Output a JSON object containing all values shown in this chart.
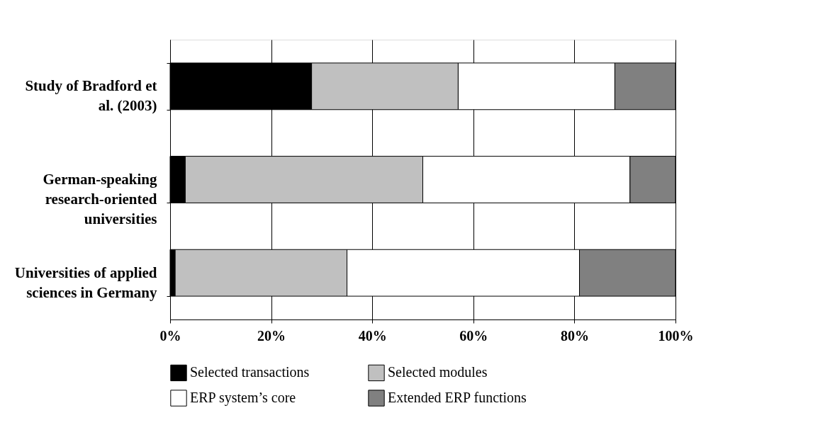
{
  "chart_data": {
    "type": "bar",
    "orientation": "horizontal",
    "stacked": true,
    "categories": [
      "Study of Bradford et al. (2003)",
      "German-speaking research-oriented universities",
      "Universities of applied sciences in Germany"
    ],
    "series": [
      {
        "name": "Selected transactions",
        "color": "#000000",
        "values": [
          28,
          3,
          1
        ]
      },
      {
        "name": "Selected modules",
        "color": "#c0c0c0",
        "values": [
          29,
          47,
          34
        ]
      },
      {
        "name": "ERP system’s core",
        "color": "#ffffff",
        "values": [
          31,
          41,
          46
        ]
      },
      {
        "name": "Extended ERP functions",
        "color": "#808080",
        "values": [
          12,
          9,
          19
        ]
      }
    ],
    "xlim": [
      0,
      100
    ],
    "xticks": [
      {
        "value": 0,
        "label": "0%"
      },
      {
        "value": 20,
        "label": "20%"
      },
      {
        "value": 40,
        "label": "40%"
      },
      {
        "value": 60,
        "label": "60%"
      },
      {
        "value": 80,
        "label": "80%"
      },
      {
        "value": 100,
        "label": "100%"
      }
    ],
    "grid": "x",
    "legend": "bottom"
  }
}
